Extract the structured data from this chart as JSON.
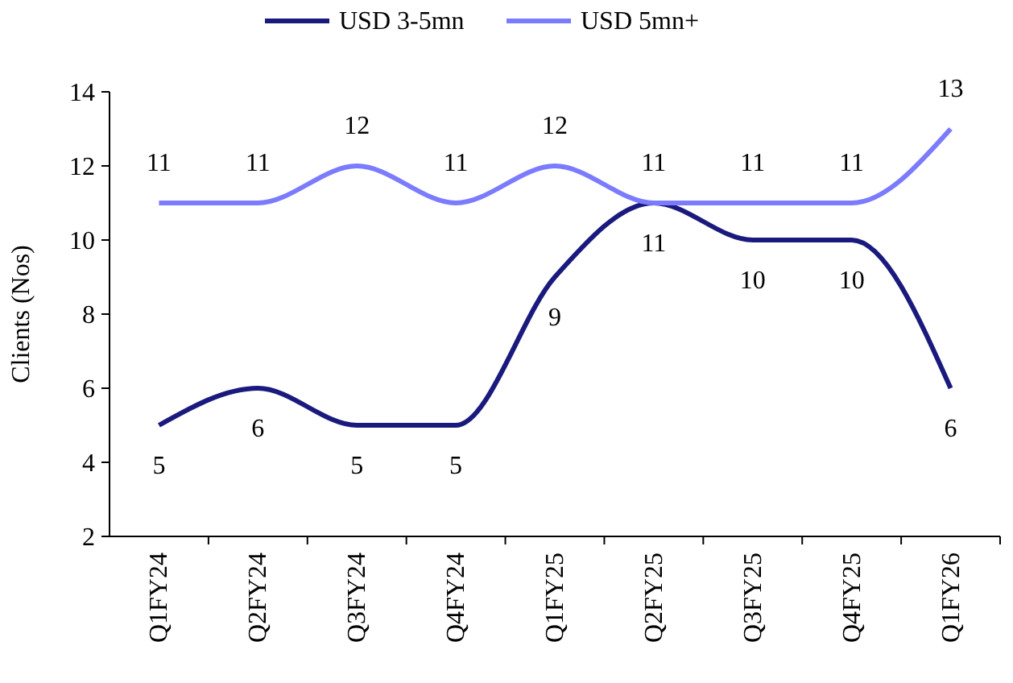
{
  "chart_data": {
    "type": "line",
    "ylabel": "Clients (Nos)",
    "categories": [
      "Q1FY24",
      "Q2FY24",
      "Q3FY24",
      "Q4FY24",
      "Q1FY25",
      "Q2FY25",
      "Q3FY25",
      "Q4FY25",
      "Q1FY26"
    ],
    "series": [
      {
        "name": "USD 3-5mn",
        "color": "#1a1a7e",
        "values": [
          5,
          6,
          5,
          5,
          9,
          11,
          10,
          10,
          6
        ]
      },
      {
        "name": "USD 5mn+",
        "color": "#7b7bff",
        "values": [
          11,
          11,
          12,
          11,
          12,
          11,
          11,
          11,
          13
        ]
      }
    ],
    "ylim": [
      2,
      14
    ],
    "yticks": [
      2,
      4,
      6,
      8,
      10,
      12,
      14
    ],
    "data_labels": true,
    "legend": "top",
    "grid": false,
    "marker": "none",
    "line_style": "solid"
  }
}
